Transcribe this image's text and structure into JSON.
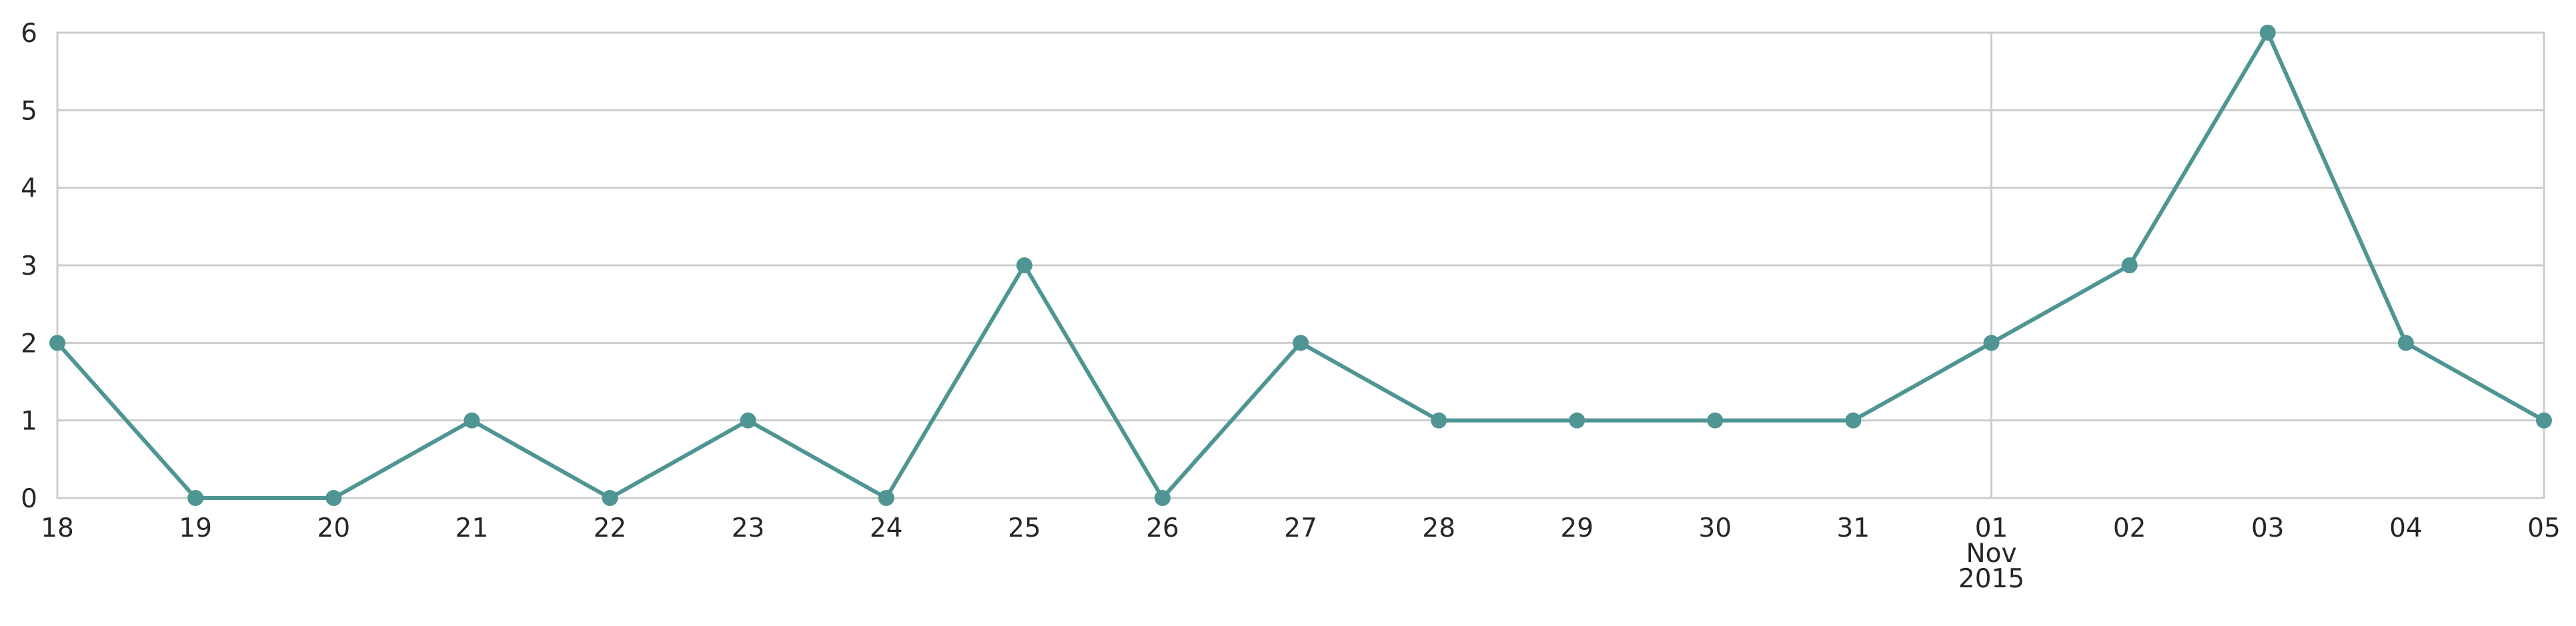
{
  "chart_data": {
    "type": "line",
    "title": "",
    "xlabel": "",
    "ylabel": "",
    "x": [
      "2015-10-18",
      "2015-10-19",
      "2015-10-20",
      "2015-10-21",
      "2015-10-22",
      "2015-10-23",
      "2015-10-24",
      "2015-10-25",
      "2015-10-26",
      "2015-10-27",
      "2015-10-28",
      "2015-10-29",
      "2015-10-30",
      "2015-10-31",
      "2015-11-01",
      "2015-11-02",
      "2015-11-03",
      "2015-11-04",
      "2015-11-05"
    ],
    "x_tick_labels": [
      [
        "18"
      ],
      [
        "19"
      ],
      [
        "20"
      ],
      [
        "21"
      ],
      [
        "22"
      ],
      [
        "23"
      ],
      [
        "24"
      ],
      [
        "25"
      ],
      [
        "26"
      ],
      [
        "27"
      ],
      [
        "28"
      ],
      [
        "29"
      ],
      [
        "30"
      ],
      [
        "31"
      ],
      [
        "01",
        "Nov",
        "2015"
      ],
      [
        "02"
      ],
      [
        "03"
      ],
      [
        "04"
      ],
      [
        "05"
      ]
    ],
    "y_ticks": [
      "0",
      "1",
      "2",
      "3",
      "4",
      "5",
      "6"
    ],
    "ylim": [
      0,
      6
    ],
    "series": [
      {
        "values": [
          2,
          0,
          0,
          1,
          0,
          1,
          0,
          3,
          0,
          2,
          1,
          1,
          1,
          1,
          2,
          3,
          6,
          2,
          1
        ]
      }
    ],
    "grid": {
      "horizontal": true,
      "vertical_at": [
        "2015-11-01"
      ]
    },
    "colors": {
      "line": "#4e9593",
      "grid": "#cccccc",
      "text": "#262626"
    }
  }
}
